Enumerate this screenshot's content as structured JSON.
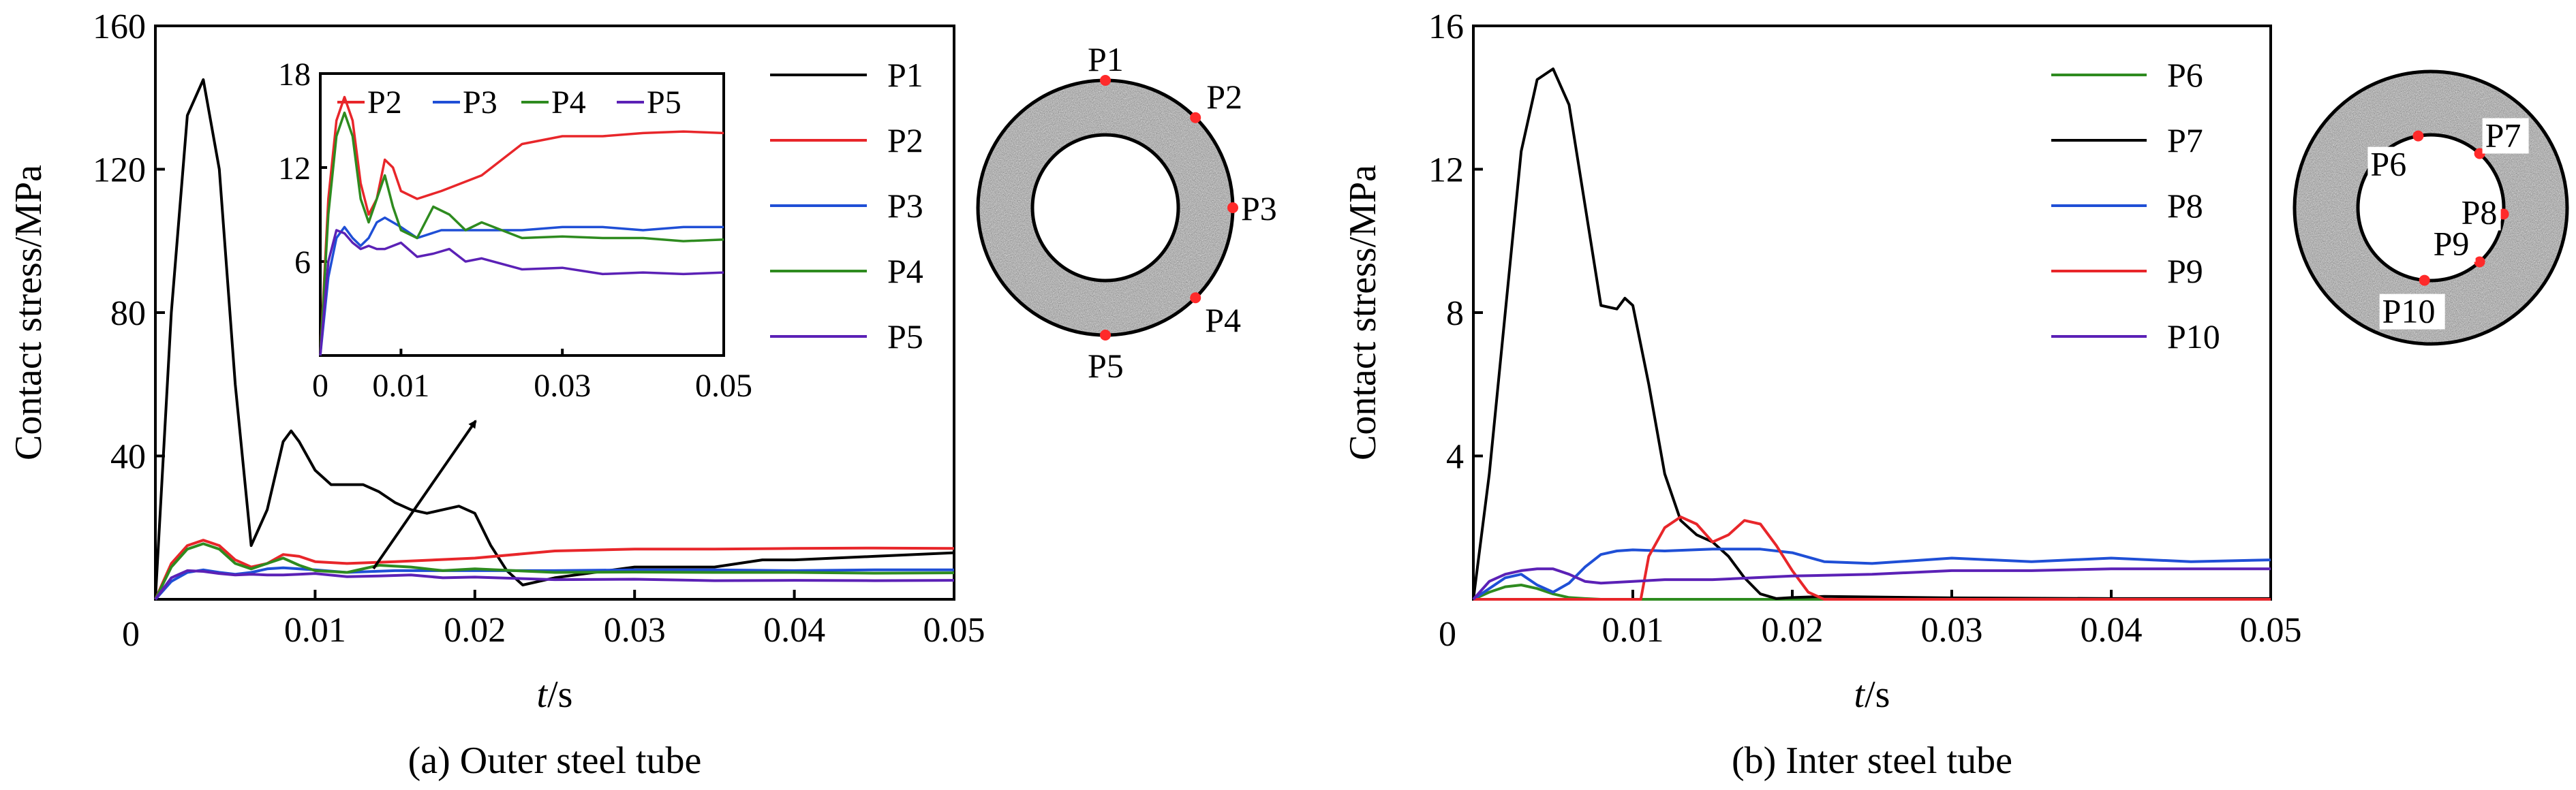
{
  "captions": {
    "a": "(a) Outer steel tube",
    "b": "(b) Inter steel tube"
  },
  "chart_data": [
    {
      "type": "line",
      "caption": "(a) Outer steel tube",
      "xlabel_italic": "t",
      "xlabel_unit": "/s",
      "ylabel": "Contact stress/MPa",
      "xlim": [
        0,
        0.05
      ],
      "ylim": [
        0,
        160
      ],
      "xticks": [
        "0",
        "0.01",
        "0.02",
        "0.03",
        "0.04",
        "0.05"
      ],
      "yticks": [
        "0",
        "40",
        "80",
        "120",
        "160"
      ],
      "grid": false,
      "legend_position": "right",
      "series": [
        {
          "name": "P1",
          "color": "#000000",
          "x": [
            0,
            0.001,
            0.002,
            0.003,
            0.004,
            0.005,
            0.006,
            0.007,
            0.008,
            0.0085,
            0.009,
            0.01,
            0.011,
            0.012,
            0.013,
            0.014,
            0.015,
            0.016,
            0.017,
            0.018,
            0.019,
            0.02,
            0.021,
            0.022,
            0.023,
            0.025,
            0.03,
            0.035,
            0.038,
            0.04,
            0.045,
            0.05
          ],
          "y": [
            0,
            80,
            135,
            145,
            120,
            60,
            15,
            25,
            44,
            47,
            44,
            36,
            32,
            32,
            32,
            30,
            27,
            25,
            24,
            25,
            26,
            24,
            15,
            8,
            4,
            6,
            9,
            9,
            11,
            11,
            12,
            13
          ]
        },
        {
          "name": "P2",
          "color": "#e8262a",
          "x": [
            0,
            0.001,
            0.002,
            0.003,
            0.004,
            0.005,
            0.006,
            0.007,
            0.008,
            0.009,
            0.01,
            0.012,
            0.015,
            0.02,
            0.025,
            0.03,
            0.035,
            0.04,
            0.045,
            0.05
          ],
          "y": [
            0,
            10,
            15,
            16.5,
            15,
            11,
            9,
            10,
            12.5,
            12,
            10.5,
            10,
            10.5,
            11.5,
            13.5,
            14,
            14,
            14.2,
            14.3,
            14.2
          ]
        },
        {
          "name": "P3",
          "color": "#1f4fd6",
          "x": [
            0,
            0.001,
            0.002,
            0.003,
            0.004,
            0.005,
            0.006,
            0.007,
            0.008,
            0.009,
            0.01,
            0.012,
            0.015,
            0.02,
            0.025,
            0.03,
            0.035,
            0.04,
            0.045,
            0.05
          ],
          "y": [
            0,
            5,
            7.5,
            8.2,
            7.5,
            7,
            7.5,
            8.5,
            8.8,
            8.5,
            8.2,
            7.5,
            8,
            8,
            8,
            8.2,
            8.2,
            8,
            8.2,
            8.2
          ]
        },
        {
          "name": "P4",
          "color": "#2e8b1f",
          "x": [
            0,
            0.001,
            0.002,
            0.003,
            0.004,
            0.005,
            0.006,
            0.007,
            0.008,
            0.009,
            0.01,
            0.012,
            0.014,
            0.016,
            0.018,
            0.02,
            0.025,
            0.03,
            0.035,
            0.04,
            0.045,
            0.05
          ],
          "y": [
            0,
            9,
            14,
            15.5,
            14,
            10,
            8.5,
            10,
            11.5,
            9.5,
            8,
            7.5,
            9.5,
            9,
            8,
            8.5,
            7.5,
            7.6,
            7.5,
            7.5,
            7.3,
            7.4
          ]
        },
        {
          "name": "P5",
          "color": "#5b21b6",
          "x": [
            0,
            0.001,
            0.002,
            0.003,
            0.004,
            0.005,
            0.006,
            0.007,
            0.008,
            0.009,
            0.01,
            0.012,
            0.014,
            0.016,
            0.018,
            0.02,
            0.025,
            0.03,
            0.035,
            0.04,
            0.045,
            0.05
          ],
          "y": [
            0,
            6,
            8,
            7.8,
            7.2,
            6.8,
            7,
            6.8,
            6.8,
            7,
            7.2,
            6.3,
            6.5,
            6.8,
            6,
            6.2,
            5.5,
            5.6,
            5.2,
            5.3,
            5.2,
            5.3
          ]
        }
      ],
      "inset": {
        "xlim": [
          0,
          0.05
        ],
        "ylim": [
          0,
          18
        ],
        "xticks": [
          "0",
          "0.01",
          "0.03",
          "0.05"
        ],
        "yticks": [
          "6",
          "12",
          "18"
        ],
        "legend": [
          "P2",
          "P3",
          "P4",
          "P5"
        ]
      },
      "cross_section_points": [
        "P1",
        "P2",
        "P3",
        "P4",
        "P5"
      ]
    },
    {
      "type": "line",
      "caption": "(b) Inter steel tube",
      "xlabel_italic": "t",
      "xlabel_unit": "/s",
      "ylabel": "Contact stress/MPa",
      "xlim": [
        0,
        0.05
      ],
      "ylim": [
        0,
        16
      ],
      "xticks": [
        "0",
        "0.01",
        "0.02",
        "0.03",
        "0.04",
        "0.05"
      ],
      "yticks": [
        "0",
        "4",
        "8",
        "12",
        "16"
      ],
      "grid": false,
      "legend_position": "right",
      "series": [
        {
          "name": "P6",
          "color": "#2e8b1f",
          "x": [
            0,
            0.001,
            0.002,
            0.003,
            0.004,
            0.005,
            0.006,
            0.007,
            0.008,
            0.01,
            0.02,
            0.03,
            0.04,
            0.05
          ],
          "y": [
            0,
            0.2,
            0.35,
            0.4,
            0.3,
            0.15,
            0.05,
            0.02,
            0,
            0,
            0,
            0,
            0,
            0
          ]
        },
        {
          "name": "P7",
          "color": "#000000",
          "x": [
            0,
            0.001,
            0.002,
            0.003,
            0.004,
            0.005,
            0.006,
            0.007,
            0.008,
            0.009,
            0.0095,
            0.01,
            0.011,
            0.012,
            0.013,
            0.014,
            0.015,
            0.016,
            0.017,
            0.018,
            0.019,
            0.02,
            0.022,
            0.03,
            0.04,
            0.05
          ],
          "y": [
            0,
            3.5,
            8,
            12.5,
            14.5,
            14.8,
            13.8,
            11,
            8.2,
            8.1,
            8.4,
            8.2,
            6,
            3.5,
            2.2,
            1.8,
            1.6,
            1.2,
            0.6,
            0.15,
            0.02,
            0.05,
            0.08,
            0.04,
            0.02,
            0.02
          ]
        },
        {
          "name": "P8",
          "color": "#1f4fd6",
          "x": [
            0,
            0.001,
            0.002,
            0.003,
            0.004,
            0.005,
            0.006,
            0.007,
            0.008,
            0.009,
            0.01,
            0.012,
            0.015,
            0.018,
            0.02,
            0.022,
            0.025,
            0.03,
            0.035,
            0.04,
            0.045,
            0.05
          ],
          "y": [
            0,
            0.3,
            0.6,
            0.7,
            0.4,
            0.2,
            0.45,
            0.9,
            1.25,
            1.35,
            1.38,
            1.35,
            1.4,
            1.4,
            1.3,
            1.05,
            1.0,
            1.15,
            1.05,
            1.15,
            1.05,
            1.1
          ]
        },
        {
          "name": "P9",
          "color": "#e8262a",
          "x": [
            0,
            0.009,
            0.0105,
            0.011,
            0.012,
            0.013,
            0.014,
            0.015,
            0.016,
            0.017,
            0.018,
            0.019,
            0.02,
            0.021,
            0.022,
            0.03,
            0.04,
            0.05
          ],
          "y": [
            0,
            0,
            0,
            1.2,
            2.0,
            2.3,
            2.1,
            1.6,
            1.8,
            2.2,
            2.1,
            1.5,
            0.8,
            0.2,
            0,
            0,
            0,
            0
          ]
        },
        {
          "name": "P10",
          "color": "#5b21b6",
          "x": [
            0,
            0.001,
            0.002,
            0.003,
            0.004,
            0.005,
            0.006,
            0.007,
            0.008,
            0.01,
            0.012,
            0.015,
            0.02,
            0.025,
            0.03,
            0.035,
            0.04,
            0.045,
            0.05
          ],
          "y": [
            0,
            0.5,
            0.7,
            0.8,
            0.85,
            0.85,
            0.7,
            0.5,
            0.45,
            0.5,
            0.55,
            0.55,
            0.65,
            0.7,
            0.8,
            0.8,
            0.85,
            0.85,
            0.85
          ]
        }
      ],
      "cross_section_points": [
        "P6",
        "P7",
        "P8",
        "P9",
        "P10"
      ]
    }
  ]
}
